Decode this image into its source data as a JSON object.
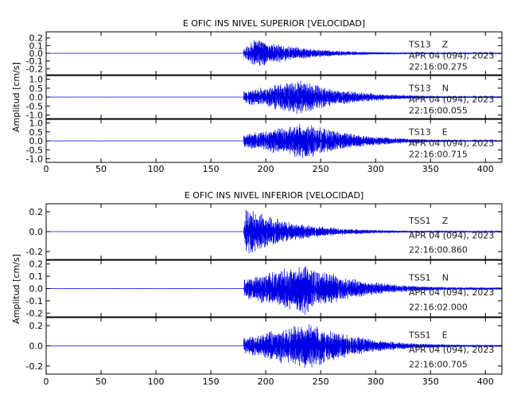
{
  "chart_data": [
    {
      "type": "line",
      "title": "E OFIC INS NIVEL SUPERIOR [VELOCIDAD]",
      "ylabel": "Amplitud [cm/s]",
      "xlim": [
        0,
        415
      ],
      "xticks": [
        "0",
        "50",
        "100",
        "150",
        "200",
        "250",
        "300",
        "350",
        "400"
      ],
      "series_color": "#0000e6",
      "panels": [
        {
          "station": "TS13",
          "component": "Z",
          "date": "APR 04 (094), 2023",
          "time": "22:16:00.275",
          "ylim": [
            -0.28,
            0.28
          ],
          "yticks": [
            "0.2",
            "0.1",
            "0.0",
            "-0.1",
            "-0.2"
          ],
          "onset_s": 180,
          "peak_s": 190,
          "peak_amp": 0.2,
          "end_amp": 0.005
        },
        {
          "station": "TS13",
          "component": "N",
          "date": "APR 04 (094), 2023",
          "time": "22:16:00.055",
          "ylim": [
            -1.2,
            1.2
          ],
          "yticks": [
            "1.0",
            "0.5",
            "0.0",
            "-0.5",
            "-1.0"
          ],
          "onset_s": 180,
          "peak_s": 230,
          "peak_amp": 1.0,
          "end_amp": 0.04
        },
        {
          "station": "TS13",
          "component": "E",
          "date": "APR 04 (094), 2023",
          "time": "22:16:00.715",
          "ylim": [
            -1.2,
            1.2
          ],
          "yticks": [
            "1.0",
            "0.5",
            "0.0",
            "-0.5",
            "-1.0"
          ],
          "onset_s": 180,
          "peak_s": 238,
          "peak_amp": 1.05,
          "end_amp": 0.04
        }
      ]
    },
    {
      "type": "line",
      "title": "E OFIC INS NIVEL INFERIOR [VELOCIDAD]",
      "ylabel": "Amplitud [cm/s]",
      "xlim": [
        0,
        415
      ],
      "xticks": [
        "0",
        "50",
        "100",
        "150",
        "200",
        "250",
        "300",
        "350",
        "400"
      ],
      "series_color": "#0000e6",
      "panels": [
        {
          "station": "TSS1",
          "component": "Z",
          "date": "APR 04 (094), 2023",
          "time": "22:16:00.860",
          "ylim": [
            -0.28,
            0.28
          ],
          "yticks": [
            "0.2",
            "0.0",
            "-0.2"
          ],
          "onset_s": 180,
          "peak_s": 182,
          "peak_amp": 0.25,
          "end_amp": 0.005
        },
        {
          "station": "TSS1",
          "component": "N",
          "date": "APR 04 (094), 2023",
          "time": "22:16:02.000",
          "ylim": [
            -0.23,
            0.23
          ],
          "yticks": [
            "0.2",
            "0.1",
            "0.0",
            "-0.1",
            "-0.2"
          ],
          "onset_s": 180,
          "peak_s": 235,
          "peak_amp": 0.22,
          "end_amp": 0.01
        },
        {
          "station": "TSS1",
          "component": "E",
          "date": "APR 04 (094), 2023",
          "time": "22:16:00.705",
          "ylim": [
            -0.28,
            0.28
          ],
          "yticks": [
            "0.2",
            "0.0",
            "-0.2"
          ],
          "onset_s": 180,
          "peak_s": 240,
          "peak_amp": 0.24,
          "end_amp": 0.01
        }
      ]
    }
  ]
}
